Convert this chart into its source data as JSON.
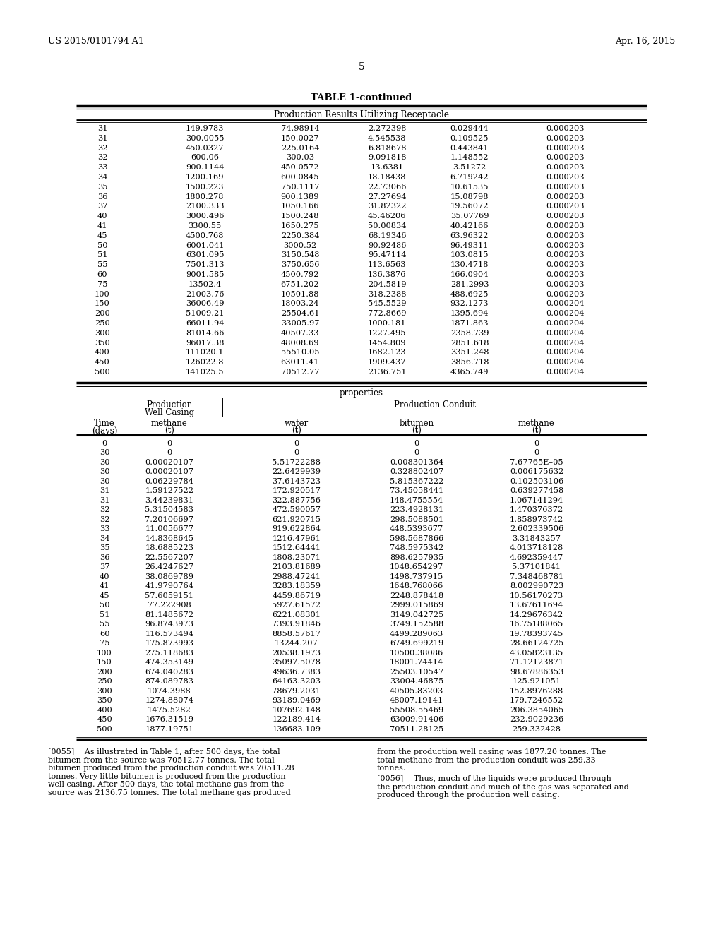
{
  "header_left": "US 2015/0101794 A1",
  "header_right": "Apr. 16, 2015",
  "page_number": "5",
  "table_title": "TABLE 1-continued",
  "table1_subtitle": "Production Results Utilizing Receptacle",
  "table1_data": [
    [
      "31",
      "149.9783",
      "74.98914",
      "2.272398",
      "0.029444",
      "0.000203"
    ],
    [
      "31",
      "300.0055",
      "150.0027",
      "4.545538",
      "0.109525",
      "0.000203"
    ],
    [
      "32",
      "450.0327",
      "225.0164",
      "6.818678",
      "0.443841",
      "0.000203"
    ],
    [
      "32",
      "600.06",
      "300.03",
      "9.091818",
      "1.148552",
      "0.000203"
    ],
    [
      "33",
      "900.1144",
      "450.0572",
      "13.6381",
      "3.51272",
      "0.000203"
    ],
    [
      "34",
      "1200.169",
      "600.0845",
      "18.18438",
      "6.719242",
      "0.000203"
    ],
    [
      "35",
      "1500.223",
      "750.1117",
      "22.73066",
      "10.61535",
      "0.000203"
    ],
    [
      "36",
      "1800.278",
      "900.1389",
      "27.27694",
      "15.08798",
      "0.000203"
    ],
    [
      "37",
      "2100.333",
      "1050.166",
      "31.82322",
      "19.56072",
      "0.000203"
    ],
    [
      "40",
      "3000.496",
      "1500.248",
      "45.46206",
      "35.07769",
      "0.000203"
    ],
    [
      "41",
      "3300.55",
      "1650.275",
      "50.00834",
      "40.42166",
      "0.000203"
    ],
    [
      "45",
      "4500.768",
      "2250.384",
      "68.19346",
      "63.96322",
      "0.000203"
    ],
    [
      "50",
      "6001.041",
      "3000.52",
      "90.92486",
      "96.49311",
      "0.000203"
    ],
    [
      "51",
      "6301.095",
      "3150.548",
      "95.47114",
      "103.0815",
      "0.000203"
    ],
    [
      "55",
      "7501.313",
      "3750.656",
      "113.6563",
      "130.4718",
      "0.000203"
    ],
    [
      "60",
      "9001.585",
      "4500.792",
      "136.3876",
      "166.0904",
      "0.000203"
    ],
    [
      "75",
      "13502.4",
      "6751.202",
      "204.5819",
      "281.2993",
      "0.000203"
    ],
    [
      "100",
      "21003.76",
      "10501.88",
      "318.2388",
      "488.6925",
      "0.000203"
    ],
    [
      "150",
      "36006.49",
      "18003.24",
      "545.5529",
      "932.1273",
      "0.000204"
    ],
    [
      "200",
      "51009.21",
      "25504.61",
      "772.8669",
      "1395.694",
      "0.000204"
    ],
    [
      "250",
      "66011.94",
      "33005.97",
      "1000.181",
      "1871.863",
      "0.000204"
    ],
    [
      "300",
      "81014.66",
      "40507.33",
      "1227.495",
      "2358.739",
      "0.000204"
    ],
    [
      "350",
      "96017.38",
      "48008.69",
      "1454.809",
      "2851.618",
      "0.000204"
    ],
    [
      "400",
      "111020.1",
      "55510.05",
      "1682.123",
      "3351.248",
      "0.000204"
    ],
    [
      "450",
      "126022.8",
      "63011.41",
      "1909.437",
      "3856.718",
      "0.000204"
    ],
    [
      "500",
      "141025.5",
      "70512.77",
      "2136.751",
      "4365.749",
      "0.000204"
    ]
  ],
  "table2_data": [
    [
      "0",
      "0",
      "0",
      "0",
      "0"
    ],
    [
      "30",
      "0",
      "0",
      "0",
      "0"
    ],
    [
      "30",
      "0.00020107",
      "5.51722288",
      "0.008301364",
      "7.67765E–05"
    ],
    [
      "30",
      "0.00020107",
      "22.6429939",
      "0.328802407",
      "0.006175632"
    ],
    [
      "30",
      "0.06229784",
      "37.6143723",
      "5.815367222",
      "0.102503106"
    ],
    [
      "31",
      "1.59127522",
      "172.920517",
      "73.45058441",
      "0.639277458"
    ],
    [
      "31",
      "3.44239831",
      "322.887756",
      "148.4755554",
      "1.067141294"
    ],
    [
      "32",
      "5.31504583",
      "472.590057",
      "223.4928131",
      "1.470376372"
    ],
    [
      "32",
      "7.20106697",
      "621.920715",
      "298.5088501",
      "1.858973742"
    ],
    [
      "33",
      "11.0056677",
      "919.622864",
      "448.5393677",
      "2.602339506"
    ],
    [
      "34",
      "14.8368645",
      "1216.47961",
      "598.5687866",
      "3.31843257"
    ],
    [
      "35",
      "18.6885223",
      "1512.64441",
      "748.5975342",
      "4.013718128"
    ],
    [
      "36",
      "22.5567207",
      "1808.23071",
      "898.6257935",
      "4.692359447"
    ],
    [
      "37",
      "26.4247627",
      "2103.81689",
      "1048.654297",
      "5.37101841"
    ],
    [
      "40",
      "38.0869789",
      "2988.47241",
      "1498.737915",
      "7.348468781"
    ],
    [
      "41",
      "41.9790764",
      "3283.18359",
      "1648.768066",
      "8.002990723"
    ],
    [
      "45",
      "57.6059151",
      "4459.86719",
      "2248.878418",
      "10.56170273"
    ],
    [
      "50",
      "77.222908",
      "5927.61572",
      "2999.015869",
      "13.67611694"
    ],
    [
      "51",
      "81.1485672",
      "6221.08301",
      "3149.042725",
      "14.29676342"
    ],
    [
      "55",
      "96.8743973",
      "7393.91846",
      "3749.152588",
      "16.75188065"
    ],
    [
      "60",
      "116.573494",
      "8858.57617",
      "4499.289063",
      "19.78393745"
    ],
    [
      "75",
      "175.873993",
      "13244.207",
      "6749.699219",
      "28.66124725"
    ],
    [
      "100",
      "275.118683",
      "20538.1973",
      "10500.38086",
      "43.05823135"
    ],
    [
      "150",
      "474.353149",
      "35097.5078",
      "18001.74414",
      "71.12123871"
    ],
    [
      "200",
      "674.040283",
      "49636.7383",
      "25503.10547",
      "98.67886353"
    ],
    [
      "250",
      "874.089783",
      "64163.3203",
      "33004.46875",
      "125.921051"
    ],
    [
      "300",
      "1074.3988",
      "78679.2031",
      "40505.83203",
      "152.8976288"
    ],
    [
      "350",
      "1274.88074",
      "93189.0469",
      "48007.19141",
      "179.7246552"
    ],
    [
      "400",
      "1475.5282",
      "107692.148",
      "55508.55469",
      "206.3854065"
    ],
    [
      "450",
      "1676.31519",
      "122189.414",
      "63009.91406",
      "232.9029236"
    ],
    [
      "500",
      "1877.19751",
      "136683.109",
      "70511.28125",
      "259.332428"
    ]
  ],
  "fn_left_lines": [
    "[0055]  As illustrated in Table 1, after 500 days, the total",
    "bitumen from the source was 70512.77 tonnes. The total",
    "bitumen produced from the production conduit was 70511.28",
    "tonnes. Very little bitumen is produced from the production",
    "well casing. After 500 days, the total methane gas from the",
    "source was 2136.75 tonnes. The total methane gas produced"
  ],
  "fn_right_lines": [
    "from the production well casing was 1877.20 tonnes. The",
    "total methane from the production conduit was 259.33",
    "tonnes."
  ],
  "fn2_right_lines": [
    "[0056]  Thus, much of the liquids were produced through",
    "the production conduit and much of the gas was separated and",
    "produced through the production well casing."
  ]
}
